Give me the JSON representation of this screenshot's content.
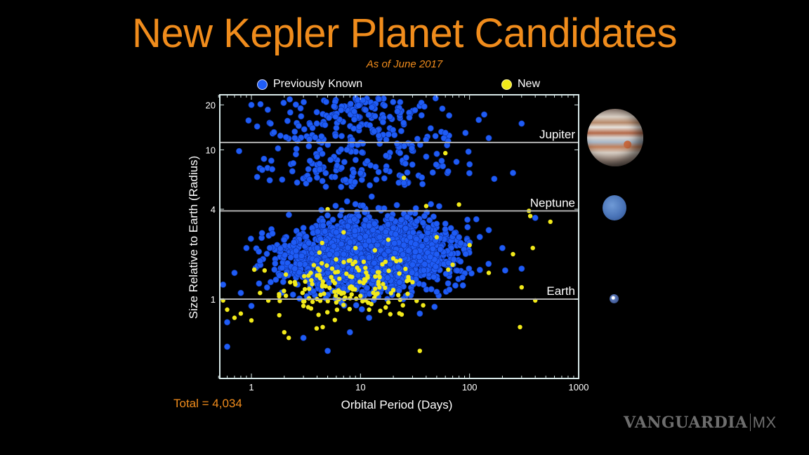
{
  "header": {
    "title": "New Kepler Planet Candidates",
    "subtitle": "As of June 2017"
  },
  "legend": {
    "items": [
      {
        "label": "Previously Known",
        "color": "#1f5cf5"
      },
      {
        "label": "New",
        "color": "#f2ea1a"
      }
    ]
  },
  "footer": {
    "total": "Total = 4,034",
    "watermark": "VANGUARDIA",
    "watermark_suffix": "MX"
  },
  "planet_images": [
    {
      "name": "Jupiter",
      "radius_earth": 11.2
    },
    {
      "name": "Neptune",
      "radius_earth": 3.9
    },
    {
      "name": "Earth",
      "radius_earth": 1
    }
  ],
  "colors": {
    "title": "#f08c1c",
    "known": "#1f5cf5",
    "new": "#f2ea1a",
    "axes": "#d8e8e8",
    "reference_lines": "#b0b0b0"
  },
  "chart_data": {
    "type": "scatter",
    "title": "New Kepler Planet Candidates",
    "subtitle": "As of June 2017",
    "xlabel": "Orbital Period (Days)",
    "ylabel": "Size Relative to Earth (Radius)",
    "xscale": "log",
    "yscale": "log",
    "xlim": [
      0.5,
      1000
    ],
    "ylim": [
      0.35,
      22
    ],
    "xticks": [
      1,
      10,
      100,
      1000
    ],
    "yticks": [
      1,
      4,
      10,
      20
    ],
    "grid": false,
    "legend_position": "top",
    "reference_lines": [
      {
        "label": "Jupiter",
        "y": 11.2
      },
      {
        "label": "Neptune",
        "y": 3.9
      },
      {
        "label": "Earth",
        "y": 1
      }
    ],
    "annotations": [
      "Total = 4,034"
    ],
    "series": [
      {
        "name": "Previously Known",
        "color": "#1f5cf5",
        "description": "Dense cloud centered near P~10-20 days, R~2 Earth radii; spread 0.5-500 days, 0.4-22 Earth radii",
        "points": [
          [
            0.55,
            1.25
          ],
          [
            0.6,
            0.7
          ],
          [
            0.7,
            1.5
          ],
          [
            0.8,
            1.1
          ],
          [
            0.9,
            2.2
          ],
          [
            1.0,
            0.9
          ],
          [
            1.2,
            1.8
          ],
          [
            1.5,
            1.3
          ],
          [
            2.0,
            2.5
          ],
          [
            2.5,
            1.6
          ],
          [
            3.0,
            3.0
          ],
          [
            4.0,
            2.2
          ],
          [
            5.0,
            1.8
          ],
          [
            6.0,
            2.8
          ],
          [
            7.0,
            2.0
          ],
          [
            8.0,
            2.4
          ],
          [
            10,
            2.2
          ],
          [
            12,
            1.9
          ],
          [
            15,
            2.6
          ],
          [
            18,
            2.1
          ],
          [
            20,
            3.0
          ],
          [
            25,
            2.3
          ],
          [
            30,
            1.7
          ],
          [
            40,
            2.5
          ],
          [
            50,
            2.0
          ],
          [
            60,
            3.2
          ],
          [
            80,
            2.6
          ],
          [
            100,
            2.4
          ],
          [
            150,
            2.9
          ],
          [
            200,
            2.2
          ],
          [
            300,
            1.6
          ],
          [
            400,
            3.5
          ],
          [
            1.0,
            20
          ],
          [
            1.5,
            15
          ],
          [
            2.5,
            12
          ],
          [
            4.0,
            9
          ],
          [
            6.0,
            14
          ],
          [
            10,
            7
          ],
          [
            15,
            11
          ],
          [
            25,
            6
          ],
          [
            40,
            9
          ],
          [
            60,
            13
          ],
          [
            100,
            8
          ],
          [
            150,
            12
          ],
          [
            250,
            7
          ],
          [
            300,
            15
          ],
          [
            3.0,
            0.55
          ],
          [
            5.0,
            0.45
          ],
          [
            8.0,
            0.6
          ],
          [
            12,
            0.75
          ],
          [
            35,
            0.8
          ],
          [
            0.6,
            0.48
          ]
        ]
      },
      {
        "name": "New",
        "color": "#f2ea1a",
        "description": "219 new candidates, scattered; cluster at long periods 300-500 days near Neptune size",
        "points": [
          [
            0.55,
            0.98
          ],
          [
            0.6,
            0.85
          ],
          [
            0.7,
            0.75
          ],
          [
            0.8,
            0.8
          ],
          [
            1.0,
            0.72
          ],
          [
            1.2,
            1.1
          ],
          [
            1.8,
            0.78
          ],
          [
            2.0,
            0.6
          ],
          [
            2.2,
            0.55
          ],
          [
            2.5,
            1.3
          ],
          [
            3.0,
            0.9
          ],
          [
            3.5,
            1.5
          ],
          [
            4.0,
            1.0
          ],
          [
            4.5,
            0.65
          ],
          [
            5.0,
            4.0
          ],
          [
            5.5,
            1.6
          ],
          [
            6.0,
            0.95
          ],
          [
            7.0,
            2.8
          ],
          [
            8.0,
            1.2
          ],
          [
            9.0,
            2.2
          ],
          [
            10,
            1.05
          ],
          [
            12,
            0.85
          ],
          [
            15,
            1.4
          ],
          [
            18,
            2.5
          ],
          [
            20,
            1.15
          ],
          [
            25,
            6.5
          ],
          [
            30,
            1.3
          ],
          [
            35,
            0.45
          ],
          [
            40,
            4.2
          ],
          [
            50,
            2.6
          ],
          [
            60,
            9.5
          ],
          [
            70,
            1.7
          ],
          [
            80,
            4.3
          ],
          [
            100,
            2.3
          ],
          [
            150,
            1.5
          ],
          [
            250,
            2.0
          ],
          [
            290,
            0.65
          ],
          [
            300,
            1.2
          ],
          [
            350,
            3.9
          ],
          [
            360,
            3.6
          ],
          [
            380,
            2.2
          ],
          [
            400,
            0.98
          ],
          [
            550,
            3.3
          ]
        ]
      }
    ]
  }
}
